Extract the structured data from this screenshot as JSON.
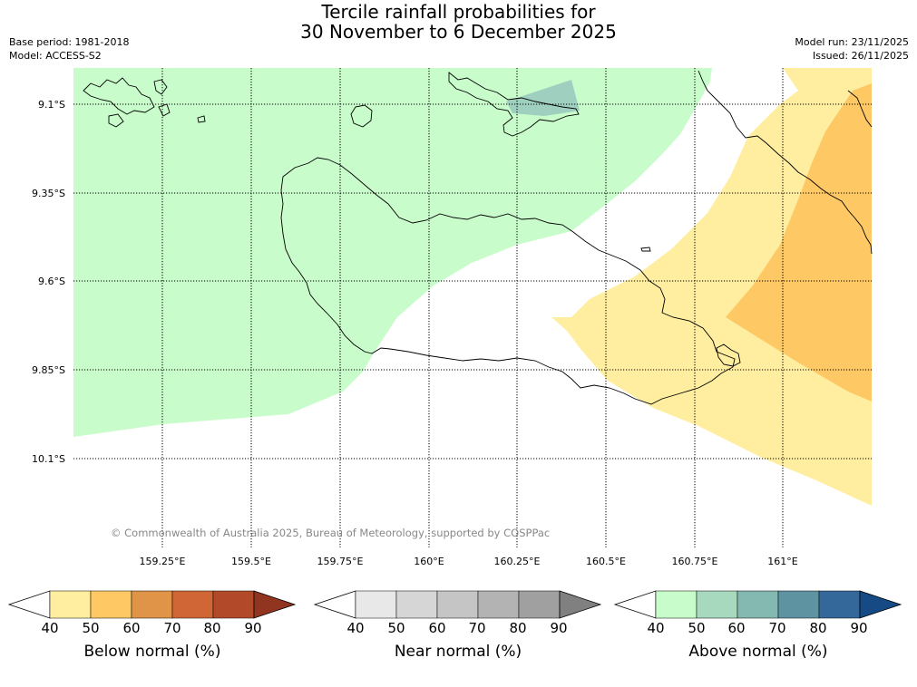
{
  "title": {
    "line1": "Tercile rainfall probabilities for",
    "line2": "30 November to 6 December 2025"
  },
  "meta": {
    "base_period": "Base period: 1981-2018",
    "model": "Model: ACCESS-S2",
    "model_run": "Model run: 23/11/2025",
    "issued": "Issued: 26/11/2025"
  },
  "latitude_labels": [
    "9.1°S",
    "9.35°S",
    "9.6°S",
    "9.85°S",
    "10.1°S"
  ],
  "longitude_labels": [
    "159.25°E",
    "159.5°E",
    "159.75°E",
    "160°E",
    "160.25°E",
    "160.5°E",
    "160.75°E",
    "161°E"
  ],
  "copyright": "© Commonwealth of Australia 2025, Bureau of Meteorology, supported by COSPPac",
  "legend": {
    "below": {
      "title": "Below normal (%)",
      "ticks": [
        "40",
        "50",
        "60",
        "70",
        "80",
        "90"
      ],
      "colors": [
        "#ffffff",
        "#ffeda0",
        "#fec965",
        "#e09448",
        "#d06535",
        "#b24a2a",
        "#923520"
      ]
    },
    "near": {
      "title": "Near normal (%)",
      "ticks": [
        "40",
        "50",
        "60",
        "70",
        "80",
        "90"
      ],
      "colors": [
        "#ffffff",
        "#e8e8e8",
        "#d6d6d6",
        "#c5c5c5",
        "#b3b3b3",
        "#a0a0a0",
        "#808080"
      ]
    },
    "above": {
      "title": "Above normal (%)",
      "ticks": [
        "40",
        "50",
        "60",
        "70",
        "80",
        "90"
      ],
      "colors": [
        "#ffffff",
        "#c8fccb",
        "#a6d9bd",
        "#84b9b2",
        "#5e93a2",
        "#35689a",
        "#154a85"
      ]
    }
  }
}
